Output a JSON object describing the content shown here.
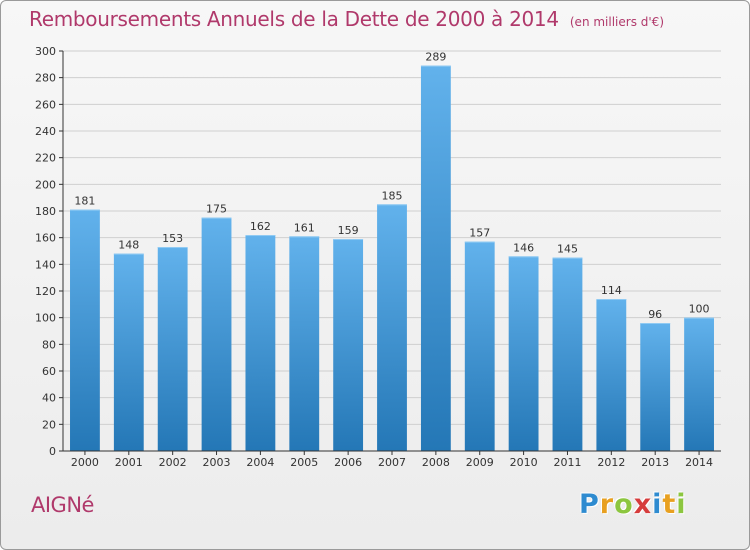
{
  "title": "Remboursements Annuels de la Dette de 2000 à 2014",
  "unit": "(en milliers d'€)",
  "commune": "AIGNé",
  "logo": {
    "letters": [
      "P",
      "r",
      "o",
      "x",
      "i",
      "t",
      "i"
    ],
    "colors": [
      "#2e8bd0",
      "#e8a020",
      "#8cc63f",
      "#d63c3c",
      "#2e8bd0",
      "#e8a020",
      "#8cc63f"
    ]
  },
  "colors": {
    "title": "#b0396b",
    "bar_top": "#62b2ec",
    "bar_bottom": "#2477b6",
    "grid": "#cfcfcf",
    "axis": "#333333"
  },
  "chart_data": {
    "type": "bar",
    "categories": [
      "2000",
      "2001",
      "2002",
      "2003",
      "2004",
      "2005",
      "2006",
      "2007",
      "2008",
      "2009",
      "2010",
      "2011",
      "2012",
      "2013",
      "2014"
    ],
    "values": [
      181,
      148,
      153,
      175,
      162,
      161,
      159,
      185,
      289,
      157,
      146,
      145,
      114,
      96,
      100
    ],
    "ylim": [
      0,
      300
    ],
    "yticks": [
      0,
      20,
      40,
      60,
      80,
      100,
      120,
      140,
      160,
      180,
      200,
      220,
      240,
      260,
      280,
      300
    ],
    "grid": true,
    "data_labels": true
  }
}
